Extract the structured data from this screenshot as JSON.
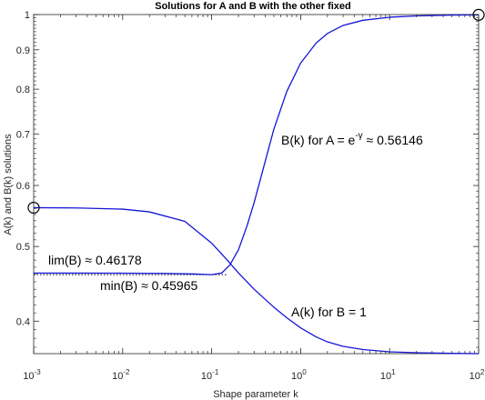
{
  "chart_data": {
    "type": "line",
    "title": "Solutions for A and B with the other fixed",
    "xlabel": "Shape parameter k",
    "ylabel": "A(k) and B(k) solutions",
    "xscale": "log",
    "yscale": "log",
    "xlim": [
      0.001,
      100
    ],
    "ylim": [
      0.363,
      1.0
    ],
    "grid": false,
    "x_ticks": [
      {
        "value": 0.001,
        "base": "10",
        "exp": "-3"
      },
      {
        "value": 0.01,
        "base": "10",
        "exp": "-2"
      },
      {
        "value": 0.1,
        "base": "10",
        "exp": "-1"
      },
      {
        "value": 1,
        "base": "10",
        "exp": "0"
      },
      {
        "value": 10,
        "base": "10",
        "exp": "1"
      },
      {
        "value": 100,
        "base": "10",
        "exp": "2"
      }
    ],
    "y_ticks": [
      {
        "value": 0.4,
        "label": "0.4"
      },
      {
        "value": 0.5,
        "label": "0.5"
      },
      {
        "value": 0.6,
        "label": "0.6"
      },
      {
        "value": 0.7,
        "label": "0.7"
      },
      {
        "value": 0.8,
        "label": "0.8"
      },
      {
        "value": 0.9,
        "label": "0.9"
      },
      {
        "value": 1.0,
        "label": "1"
      }
    ],
    "colors": {
      "series": "#1515d6",
      "axis": "#262626",
      "reference": "#000000"
    },
    "series": [
      {
        "key": "B",
        "x": [
          0.001,
          0.003,
          0.01,
          0.03,
          0.06,
          0.1,
          0.13,
          0.16,
          0.2,
          0.25,
          0.3,
          0.4,
          0.5,
          0.7,
          1.0,
          1.5,
          2,
          3,
          5,
          10,
          20,
          50,
          100
        ],
        "y": [
          0.46178,
          0.46177,
          0.4617,
          0.46138,
          0.46068,
          0.45965,
          0.462,
          0.473,
          0.495,
          0.532,
          0.57,
          0.645,
          0.71,
          0.795,
          0.865,
          0.919,
          0.945,
          0.968,
          0.983,
          0.992,
          0.996,
          0.9985,
          0.999
        ]
      },
      {
        "key": "A",
        "x": [
          0.001,
          0.003,
          0.01,
          0.02,
          0.05,
          0.1,
          0.15,
          0.2,
          0.3,
          0.5,
          0.7,
          1.0,
          1.5,
          2,
          3,
          5,
          10,
          20,
          50,
          100
        ],
        "y": [
          0.56146,
          0.561,
          0.559,
          0.5545,
          0.539,
          0.505,
          0.48,
          0.462,
          0.44,
          0.417,
          0.404,
          0.392,
          0.3815,
          0.376,
          0.371,
          0.3675,
          0.365,
          0.364,
          0.3633,
          0.363
        ]
      }
    ],
    "markers": [
      {
        "x": 0.001,
        "y": 0.56146,
        "shape": "circle"
      },
      {
        "x": 100,
        "y": 0.999,
        "shape": "circle"
      }
    ],
    "reference_lines": [
      {
        "y": 0.46178,
        "x_from": 0.001,
        "x_to": 0.001,
        "style": "dotted",
        "label": "lim(B) ≈ 0.46178"
      },
      {
        "y": 0.45965,
        "x_from": 0.001,
        "x_to": 0.15,
        "style": "dotted",
        "label": "min(B) ≈ 0.45965"
      }
    ],
    "annotations": {
      "b_curve": {
        "prefix": "B(k) for A = e",
        "sup": "-γ",
        "suffix": " ≈ 0.56146"
      },
      "a_curve": "A(k) for B = 1",
      "lim": "lim(B) ≈ 0.46178",
      "min": "min(B) ≈ 0.45965"
    }
  }
}
